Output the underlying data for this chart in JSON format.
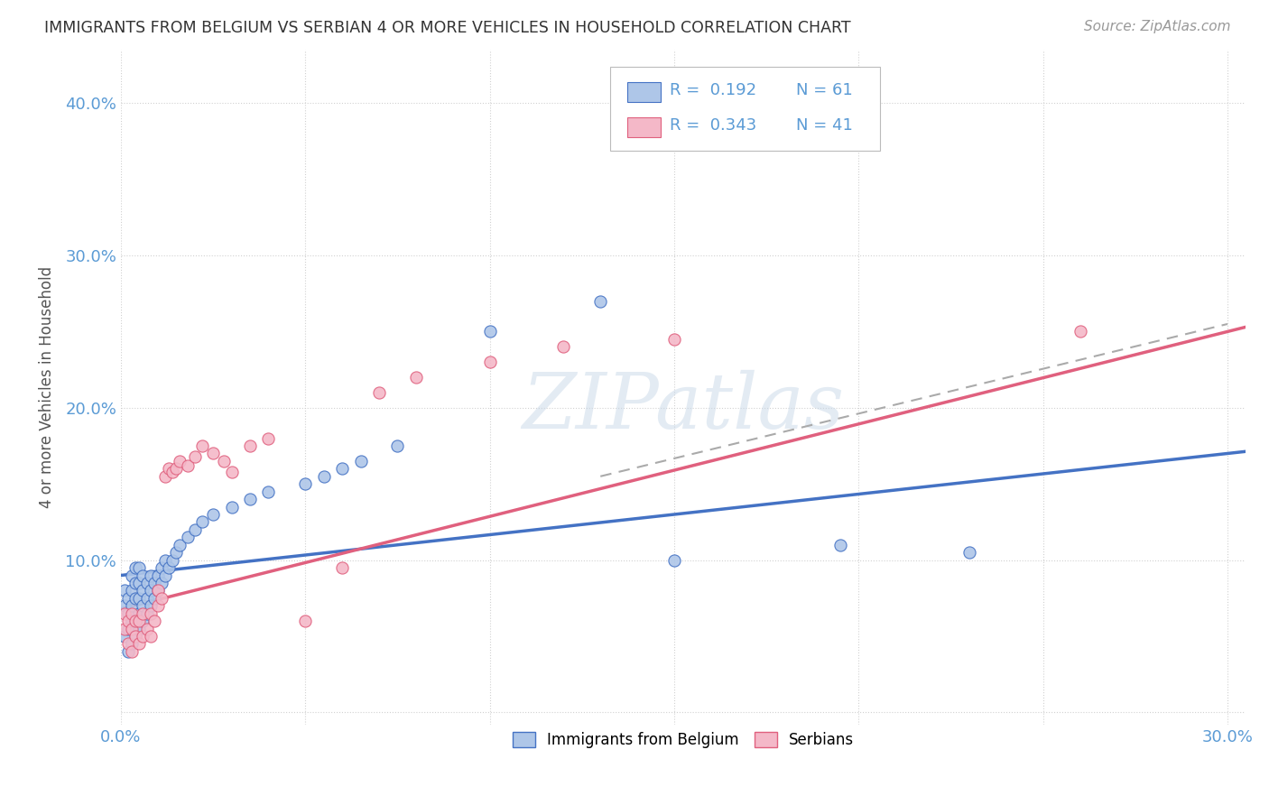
{
  "title": "IMMIGRANTS FROM BELGIUM VS SERBIAN 4 OR MORE VEHICLES IN HOUSEHOLD CORRELATION CHART",
  "source": "Source: ZipAtlas.com",
  "ylabel": "4 or more Vehicles in Household",
  "xlim": [
    0.0,
    0.305
  ],
  "ylim": [
    -0.008,
    0.435
  ],
  "color_blue": "#AEC6E8",
  "color_pink": "#F4B8C8",
  "line_blue": "#4472C4",
  "line_pink": "#E0607E",
  "line_gray": "#AAAAAA",
  "watermark": "ZIPatlas",
  "bel_x": [
    0.001,
    0.001,
    0.001,
    0.002,
    0.002,
    0.002,
    0.002,
    0.003,
    0.003,
    0.003,
    0.003,
    0.003,
    0.004,
    0.004,
    0.004,
    0.004,
    0.004,
    0.005,
    0.005,
    0.005,
    0.005,
    0.005,
    0.006,
    0.006,
    0.006,
    0.006,
    0.007,
    0.007,
    0.007,
    0.008,
    0.008,
    0.008,
    0.009,
    0.009,
    0.01,
    0.01,
    0.011,
    0.011,
    0.012,
    0.012,
    0.013,
    0.014,
    0.015,
    0.016,
    0.018,
    0.02,
    0.022,
    0.025,
    0.03,
    0.035,
    0.04,
    0.05,
    0.055,
    0.06,
    0.065,
    0.075,
    0.1,
    0.13,
    0.15,
    0.195,
    0.23
  ],
  "bel_y": [
    0.05,
    0.07,
    0.08,
    0.04,
    0.055,
    0.065,
    0.075,
    0.045,
    0.06,
    0.07,
    0.08,
    0.09,
    0.05,
    0.06,
    0.075,
    0.085,
    0.095,
    0.055,
    0.065,
    0.075,
    0.085,
    0.095,
    0.06,
    0.07,
    0.08,
    0.09,
    0.065,
    0.075,
    0.085,
    0.07,
    0.08,
    0.09,
    0.075,
    0.085,
    0.08,
    0.09,
    0.085,
    0.095,
    0.09,
    0.1,
    0.095,
    0.1,
    0.105,
    0.11,
    0.115,
    0.12,
    0.125,
    0.13,
    0.135,
    0.14,
    0.145,
    0.15,
    0.155,
    0.16,
    0.165,
    0.175,
    0.25,
    0.27,
    0.1,
    0.11,
    0.105
  ],
  "ser_x": [
    0.001,
    0.001,
    0.002,
    0.002,
    0.003,
    0.003,
    0.003,
    0.004,
    0.004,
    0.005,
    0.005,
    0.006,
    0.006,
    0.007,
    0.008,
    0.008,
    0.009,
    0.01,
    0.01,
    0.011,
    0.012,
    0.013,
    0.014,
    0.015,
    0.016,
    0.018,
    0.02,
    0.022,
    0.025,
    0.028,
    0.03,
    0.035,
    0.04,
    0.05,
    0.06,
    0.07,
    0.08,
    0.1,
    0.12,
    0.15,
    0.26
  ],
  "ser_y": [
    0.055,
    0.065,
    0.045,
    0.06,
    0.04,
    0.055,
    0.065,
    0.05,
    0.06,
    0.045,
    0.06,
    0.05,
    0.065,
    0.055,
    0.05,
    0.065,
    0.06,
    0.07,
    0.08,
    0.075,
    0.155,
    0.16,
    0.158,
    0.16,
    0.165,
    0.162,
    0.168,
    0.175,
    0.17,
    0.165,
    0.158,
    0.175,
    0.18,
    0.06,
    0.095,
    0.21,
    0.22,
    0.23,
    0.24,
    0.245,
    0.25
  ],
  "blue_line_x0": 0.0,
  "blue_line_y0": 0.09,
  "blue_line_x1": 0.3,
  "blue_line_y1": 0.17,
  "pink_line_x0": 0.0,
  "pink_line_y0": 0.068,
  "pink_line_x1": 0.3,
  "pink_line_y1": 0.25,
  "gray_line_x0": 0.13,
  "gray_line_y0": 0.155,
  "gray_line_x1": 0.3,
  "gray_line_y1": 0.255
}
